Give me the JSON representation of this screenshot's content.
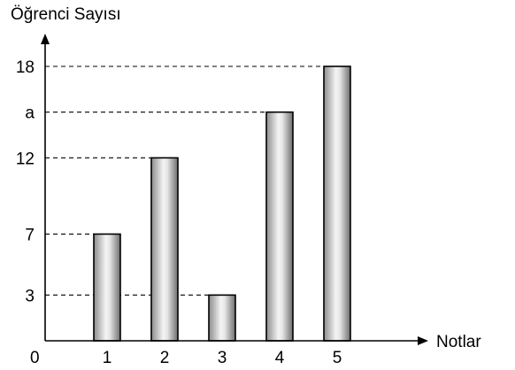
{
  "chart_data": {
    "type": "bar",
    "ylabel": "Öğrenci Sayısı",
    "xlabel": "Notlar",
    "origin_label": "0",
    "categories": [
      "1",
      "2",
      "3",
      "4",
      "5"
    ],
    "values": [
      7,
      12,
      3,
      15,
      18
    ],
    "y_tick_labels": [
      {
        "value": 3,
        "label": "3"
      },
      {
        "value": 7,
        "label": "7"
      },
      {
        "value": 12,
        "label": "12"
      },
      {
        "value": 15,
        "label": "a"
      },
      {
        "value": 18,
        "label": "18"
      }
    ],
    "ylim": [
      0,
      18
    ],
    "grid": false,
    "guide_lines": "dashed",
    "bar_fill": "gradient grey-white-grey"
  }
}
